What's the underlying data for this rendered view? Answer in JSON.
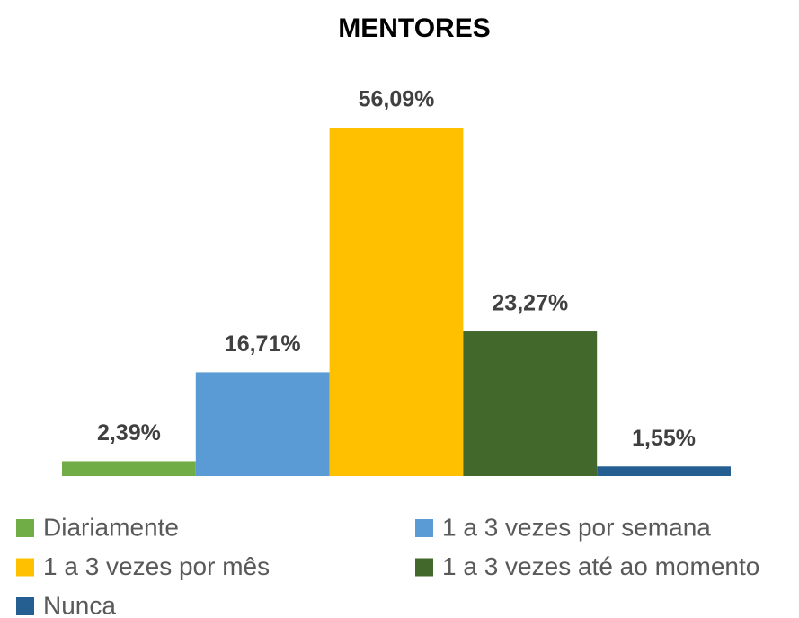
{
  "chart_data": {
    "type": "bar",
    "title": "MENTORES",
    "categories": [
      "Diariamente",
      "1 a 3 vezes por semana",
      "1 a 3 vezes por mês",
      "1 a 3 vezes até ao momento",
      "Nunca"
    ],
    "values": [
      2.39,
      16.71,
      56.09,
      23.27,
      1.55
    ],
    "value_labels": [
      "2,39%",
      "16,71%",
      "56,09%",
      "23,27%",
      "1,55%"
    ],
    "colors": [
      "#70ad47",
      "#5b9bd5",
      "#ffc000",
      "#43682b",
      "#255e91"
    ]
  }
}
